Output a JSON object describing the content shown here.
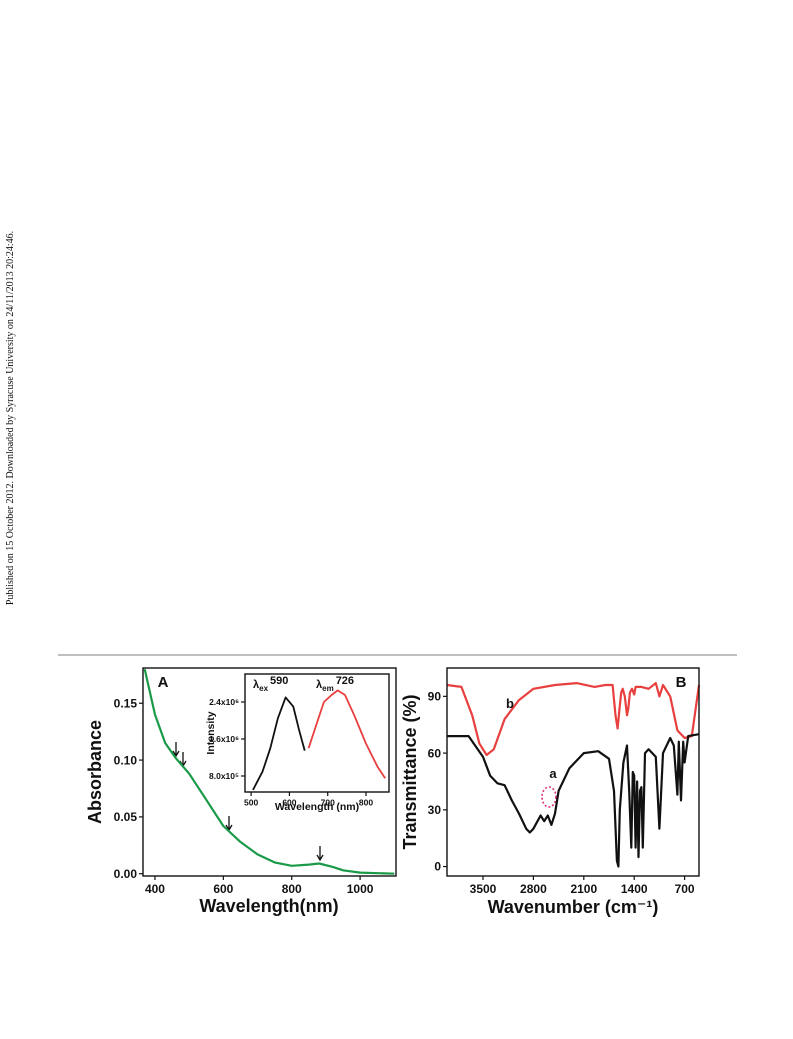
{
  "side_note": "Published on 15 October 2012. Downloaded by Syracuse University on 24/11/2013 20:24:46.",
  "chart_data": [
    {
      "type": "line",
      "panel_label": "A",
      "x_label": "Wavelength(nm)",
      "y_label": "Absorbance",
      "xlim": [
        365,
        1105
      ],
      "ylim": [
        -0.002,
        0.181
      ],
      "xticks": [
        400,
        600,
        800,
        1000
      ],
      "yticks": [
        {
          "value": 0,
          "label": "0.00"
        },
        {
          "value": 0.05,
          "label": "0.05"
        },
        {
          "value": 0.1,
          "label": "0.10"
        },
        {
          "value": 0.15,
          "label": "0.15"
        }
      ],
      "series": [
        {
          "color": "#1a9a48",
          "x": [
            370,
            400,
            430,
            460,
            480,
            500,
            550,
            600,
            650,
            700,
            750,
            800,
            850,
            880,
            920,
            950,
            1000,
            1100
          ],
          "values": [
            0.18,
            0.14,
            0.115,
            0.102,
            0.095,
            0.088,
            0.065,
            0.042,
            0.028,
            0.017,
            0.01,
            0.007,
            0.008,
            0.009,
            0.006,
            0.003,
            0.001,
            0.0
          ]
        }
      ]
    },
    {
      "type": "line",
      "x_label": "Wavelength (nm)",
      "y_label": "Intensity",
      "xlim": [
        484,
        860
      ],
      "ylim": [
        454000,
        3005000
      ],
      "xticks": [
        500,
        600,
        700,
        800
      ],
      "yticks": [
        {
          "value": 800000,
          "label": "8.0x10⁵"
        },
        {
          "value": 1600000,
          "label": "1.6x10⁶"
        },
        {
          "value": 2400000,
          "label": "2.4x10⁶"
        }
      ],
      "annotations": [
        {
          "symbol": "λ",
          "sub": "ex",
          "value": 590
        },
        {
          "symbol": "λ",
          "sub": "em",
          "value": 726
        }
      ],
      "series": [
        {
          "color": "#111111",
          "x": [
            505,
            530,
            550,
            570,
            590,
            610,
            625,
            640
          ],
          "values": [
            500000,
            900000,
            1400000,
            2050000,
            2500000,
            2300000,
            1800000,
            1350000
          ]
        },
        {
          "color": "#e8403f",
          "x": [
            650,
            670,
            690,
            710,
            726,
            745,
            770,
            800,
            830,
            850
          ],
          "values": [
            1400000,
            1900000,
            2400000,
            2550000,
            2650000,
            2550000,
            2100000,
            1500000,
            1000000,
            750000
          ]
        }
      ]
    },
    {
      "type": "line",
      "panel_label": "B",
      "x_label": "Wavenumber (cm⁻¹)",
      "y_label": "Transmittance (%)",
      "xlim": [
        4000,
        500
      ],
      "ylim": [
        -5,
        105
      ],
      "xticks": [
        3500,
        2800,
        2100,
        1400,
        700
      ],
      "yticks": [
        0,
        30,
        60,
        90
      ],
      "series": [
        {
          "name": "b",
          "color": "#e8403f",
          "x": [
            4000,
            3800,
            3650,
            3550,
            3450,
            3350,
            3200,
            3000,
            2800,
            2500,
            2200,
            1950,
            1800,
            1700,
            1660,
            1630,
            1600,
            1580,
            1560,
            1530,
            1500,
            1480,
            1460,
            1430,
            1400,
            1380,
            1300,
            1200,
            1100,
            1050,
            1000,
            900,
            800,
            700,
            600,
            500
          ],
          "values": [
            96,
            95,
            80,
            65,
            59,
            62,
            78,
            88,
            94,
            96,
            97,
            95,
            96,
            96,
            80,
            73,
            85,
            92,
            94,
            90,
            80,
            84,
            92,
            94,
            91,
            95,
            95,
            94,
            97,
            90,
            96,
            90,
            72,
            68,
            69,
            96
          ]
        },
        {
          "name": "a",
          "color": "#111111",
          "x": [
            4000,
            3700,
            3500,
            3400,
            3300,
            3200,
            3100,
            3000,
            2900,
            2850,
            2800,
            2700,
            2650,
            2600,
            2550,
            2500,
            2450,
            2300,
            2100,
            1900,
            1750,
            1680,
            1640,
            1620,
            1600,
            1550,
            1500,
            1470,
            1440,
            1420,
            1400,
            1380,
            1360,
            1340,
            1320,
            1300,
            1280,
            1250,
            1200,
            1100,
            1050,
            1000,
            900,
            850,
            800,
            780,
            750,
            720,
            700,
            650,
            500
          ],
          "values": [
            69,
            69,
            58,
            48,
            44,
            43,
            35,
            28,
            20,
            18,
            20,
            27,
            24,
            27,
            22,
            28,
            40,
            52,
            60,
            61,
            57,
            40,
            3,
            0,
            30,
            55,
            64,
            40,
            10,
            50,
            48,
            10,
            45,
            5,
            40,
            42,
            10,
            60,
            62,
            58,
            20,
            60,
            68,
            64,
            38,
            66,
            35,
            66,
            55,
            69,
            70
          ]
        }
      ]
    }
  ]
}
